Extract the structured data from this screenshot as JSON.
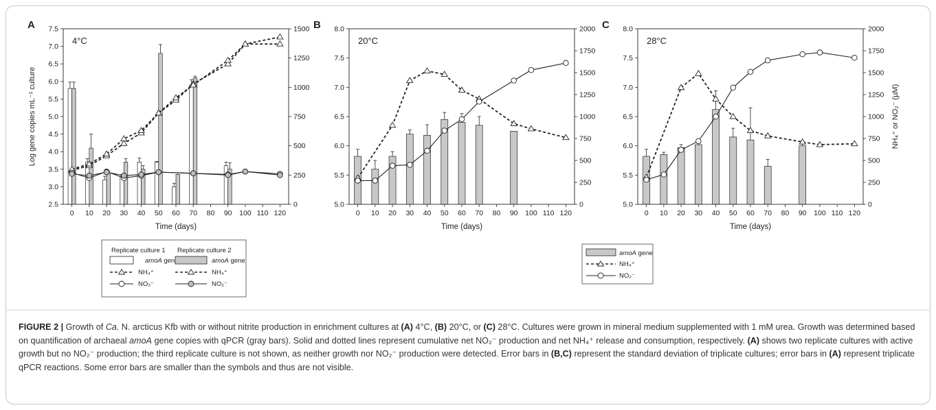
{
  "chart_data": [
    {
      "type": "bar",
      "panel_letter": "A",
      "temperature_label": "4°C",
      "xlabel": "Time (days)",
      "ylabel": "Log gene copies mL⁻¹ culture",
      "y2label": "",
      "xlim": [
        -5,
        125
      ],
      "ylim": [
        2.5,
        7.5
      ],
      "y2lim": [
        0,
        1500
      ],
      "x_ticks": [
        0,
        10,
        20,
        30,
        40,
        50,
        60,
        70,
        80,
        90,
        100,
        110,
        120
      ],
      "y_ticks": [
        "2.5",
        "3.0",
        "3.5",
        "4.0",
        "4.5",
        "5.0",
        "5.5",
        "6.0",
        "6.5",
        "7.0",
        "7.5"
      ],
      "y2_ticks": [
        "0",
        "250",
        "500",
        "750",
        "1000",
        "1250",
        "1500"
      ],
      "series": [
        {
          "name": "Replicate culture 1 amoA gene",
          "kind": "bar",
          "fill": "white",
          "x": [
            0,
            10,
            20,
            30,
            40,
            50,
            60,
            70,
            90
          ],
          "values": [
            5.8,
            3.7,
            3.2,
            3.3,
            3.7,
            3.7,
            3.0,
            5.9,
            3.6
          ],
          "errors": [
            0.18,
            0.1,
            0.1,
            0.05,
            0.12,
            0.02,
            0.1,
            0.15,
            0.1
          ]
        },
        {
          "name": "Replicate culture 2 amoA gene",
          "kind": "bar",
          "fill": "gray",
          "x": [
            0,
            10,
            20,
            30,
            40,
            50,
            60,
            70,
            90
          ],
          "values": [
            5.8,
            4.1,
            3.4,
            3.7,
            3.5,
            6.8,
            3.35,
            6.1,
            3.5
          ],
          "errors": [
            0.18,
            0.4,
            0.05,
            0.1,
            0.1,
            0.25,
            0.05,
            0.05,
            0.18
          ]
        },
        {
          "name": "Replicate culture 1 NH₄⁺",
          "kind": "line-dashed",
          "marker": "triangle-open",
          "x": [
            0,
            10,
            20,
            30,
            40,
            50,
            60,
            70,
            90,
            100,
            120
          ],
          "values": [
            290,
            330,
            415,
            520,
            610,
            780,
            890,
            1030,
            1200,
            1370,
            1430
          ]
        },
        {
          "name": "Replicate culture 2 NH₄⁺",
          "kind": "line-dashed",
          "marker": "triangle-open",
          "x": [
            0,
            10,
            20,
            30,
            40,
            50,
            60,
            70,
            90,
            100,
            120
          ],
          "values": [
            300,
            345,
            430,
            560,
            630,
            780,
            910,
            1020,
            1230,
            1370,
            1370
          ]
        },
        {
          "name": "Replicate culture 1 NO₂⁻",
          "kind": "line-solid",
          "marker": "circle-open",
          "x": [
            0,
            10,
            20,
            30,
            40,
            50,
            70,
            90,
            100,
            120
          ],
          "values": [
            270,
            225,
            280,
            225,
            245,
            275,
            265,
            255,
            280,
            260
          ]
        },
        {
          "name": "Replicate culture 2 NO₂⁻",
          "kind": "line-solid",
          "marker": "circle-gray",
          "x": [
            0,
            10,
            20,
            30,
            40,
            50,
            70,
            90,
            100,
            120
          ],
          "values": [
            260,
            245,
            275,
            245,
            255,
            275,
            265,
            250,
            280,
            250
          ]
        }
      ]
    },
    {
      "type": "bar",
      "panel_letter": "B",
      "temperature_label": "20°C",
      "xlabel": "Time (days)",
      "ylabel": "",
      "y2label": "",
      "xlim": [
        -5,
        125
      ],
      "ylim": [
        5.0,
        8.0
      ],
      "y2lim": [
        0,
        2000
      ],
      "x_ticks": [
        0,
        10,
        20,
        30,
        40,
        50,
        60,
        70,
        80,
        90,
        100,
        110,
        120
      ],
      "y_ticks": [
        "5.0",
        "5.5",
        "6.0",
        "6.5",
        "7.0",
        "7.5",
        "8.0"
      ],
      "y2_ticks": [
        "0",
        "250",
        "500",
        "750",
        "1000",
        "1250",
        "1500",
        "1750",
        "2000"
      ],
      "series": [
        {
          "name": "amoA gene",
          "kind": "bar",
          "fill": "gray",
          "x": [
            0,
            10,
            20,
            30,
            40,
            50,
            60,
            70,
            90
          ],
          "values": [
            5.82,
            5.6,
            5.82,
            6.2,
            6.18,
            6.45,
            6.4,
            6.35,
            6.25
          ],
          "errors": [
            0.12,
            0.15,
            0.08,
            0.07,
            0.18,
            0.12,
            0.15,
            0.15,
            0.0
          ]
        },
        {
          "name": "NH₄⁺",
          "kind": "line-dashed",
          "marker": "triangle-open",
          "x": [
            0,
            20,
            30,
            40,
            50,
            60,
            70,
            90,
            100,
            120
          ],
          "values": [
            300,
            900,
            1410,
            1520,
            1480,
            1300,
            1200,
            920,
            860,
            760
          ]
        },
        {
          "name": "NO₂⁻",
          "kind": "line-solid",
          "marker": "circle-open",
          "x": [
            0,
            10,
            20,
            30,
            40,
            50,
            60,
            70,
            90,
            100,
            120
          ],
          "values": [
            270,
            270,
            440,
            450,
            610,
            840,
            970,
            1170,
            1410,
            1530,
            1610
          ]
        }
      ]
    },
    {
      "type": "bar",
      "panel_letter": "C",
      "temperature_label": "28°C",
      "xlabel": "Time (days)",
      "ylabel": "",
      "y2label": "NH₄⁺ or NO₂⁻ (µM)",
      "xlim": [
        -5,
        125
      ],
      "ylim": [
        5.0,
        8.0
      ],
      "y2lim": [
        0,
        2000
      ],
      "x_ticks": [
        0,
        10,
        20,
        30,
        40,
        50,
        60,
        70,
        80,
        90,
        100,
        110,
        120
      ],
      "y_ticks": [
        "5.0",
        "5.5",
        "6.0",
        "6.5",
        "7.0",
        "7.5",
        "8.0"
      ],
      "y2_ticks": [
        "0",
        "250",
        "500",
        "750",
        "1000",
        "1250",
        "1500",
        "1750",
        "2000"
      ],
      "series": [
        {
          "name": "amoA gene",
          "kind": "bar",
          "fill": "gray",
          "x": [
            0,
            10,
            20,
            30,
            40,
            50,
            60,
            70,
            90
          ],
          "values": [
            5.82,
            5.85,
            5.97,
            6.02,
            6.62,
            6.15,
            6.1,
            5.65,
            6.0
          ],
          "errors": [
            0.12,
            0.04,
            0.05,
            0.02,
            0.32,
            0.15,
            0.55,
            0.12,
            0.05
          ]
        },
        {
          "name": "NH₄⁺",
          "kind": "line-dashed",
          "marker": "triangle-open",
          "x": [
            0,
            20,
            30,
            40,
            50,
            60,
            70,
            90,
            100,
            120
          ],
          "values": [
            310,
            1330,
            1490,
            1200,
            1000,
            840,
            780,
            710,
            680,
            690
          ]
        },
        {
          "name": "NO₂⁻",
          "kind": "line-solid",
          "marker": "circle-open",
          "x": [
            0,
            10,
            20,
            30,
            40,
            50,
            60,
            70,
            90,
            100,
            120
          ],
          "values": [
            280,
            340,
            620,
            720,
            1000,
            1330,
            1510,
            1640,
            1710,
            1730,
            1670
          ]
        }
      ]
    }
  ],
  "legend_left": {
    "col1_header": "Replicate culture 1",
    "col2_header": "Replicate culture 2",
    "amoa_label": "amoA",
    "gene_word": " gene",
    "nh4_label": "NH₄⁺",
    "no2_label": "NO₂⁻"
  },
  "legend_right": {
    "amoa_label": "amoA",
    "gene_word": " gene",
    "nh4_label": "NH₄⁺",
    "no2_label": "NO₂⁻"
  },
  "caption": {
    "figure_label": "FIGURE 2 |",
    "s1": " Growth of ",
    "s1_italic": "Ca.",
    "s2": " N. arcticus Kfb with or without nitrite production in enrichment cultures at ",
    "panel_a": "(A)",
    "s3": " 4°C, ",
    "panel_b": "(B)",
    "s4": " 20°C, or ",
    "panel_c": "(C)",
    "s5": " 28°C. Cultures were grown in mineral medium supplemented with 1 mM urea. Growth was determined based on quantification of archaeal ",
    "s5_italic": "amoA",
    "s6": " gene copies with qPCR (gray bars). Solid and dotted lines represent cumulative net NO₂⁻ production and net NH₄⁺ release and consumption, respectively. ",
    "panel_a2": "(A)",
    "s7": " shows two replicate cultures with active growth but no NO₂⁻ production; the third replicate culture is not shown, as neither growth nor NO₂⁻ production were detected. Error bars in ",
    "panel_bc": "(B,C)",
    "s8": " represent the standard deviation of triplicate cultures; error bars in ",
    "panel_a3": "(A)",
    "s9": " represent triplicate qPCR reactions. Some error bars are smaller than the symbols and thus are not visible."
  },
  "colors": {
    "bar_gray": "#c8c8c8",
    "bar_white": "#ffffff",
    "stroke": "#222222",
    "marker_gray": "#bdbdbd"
  }
}
